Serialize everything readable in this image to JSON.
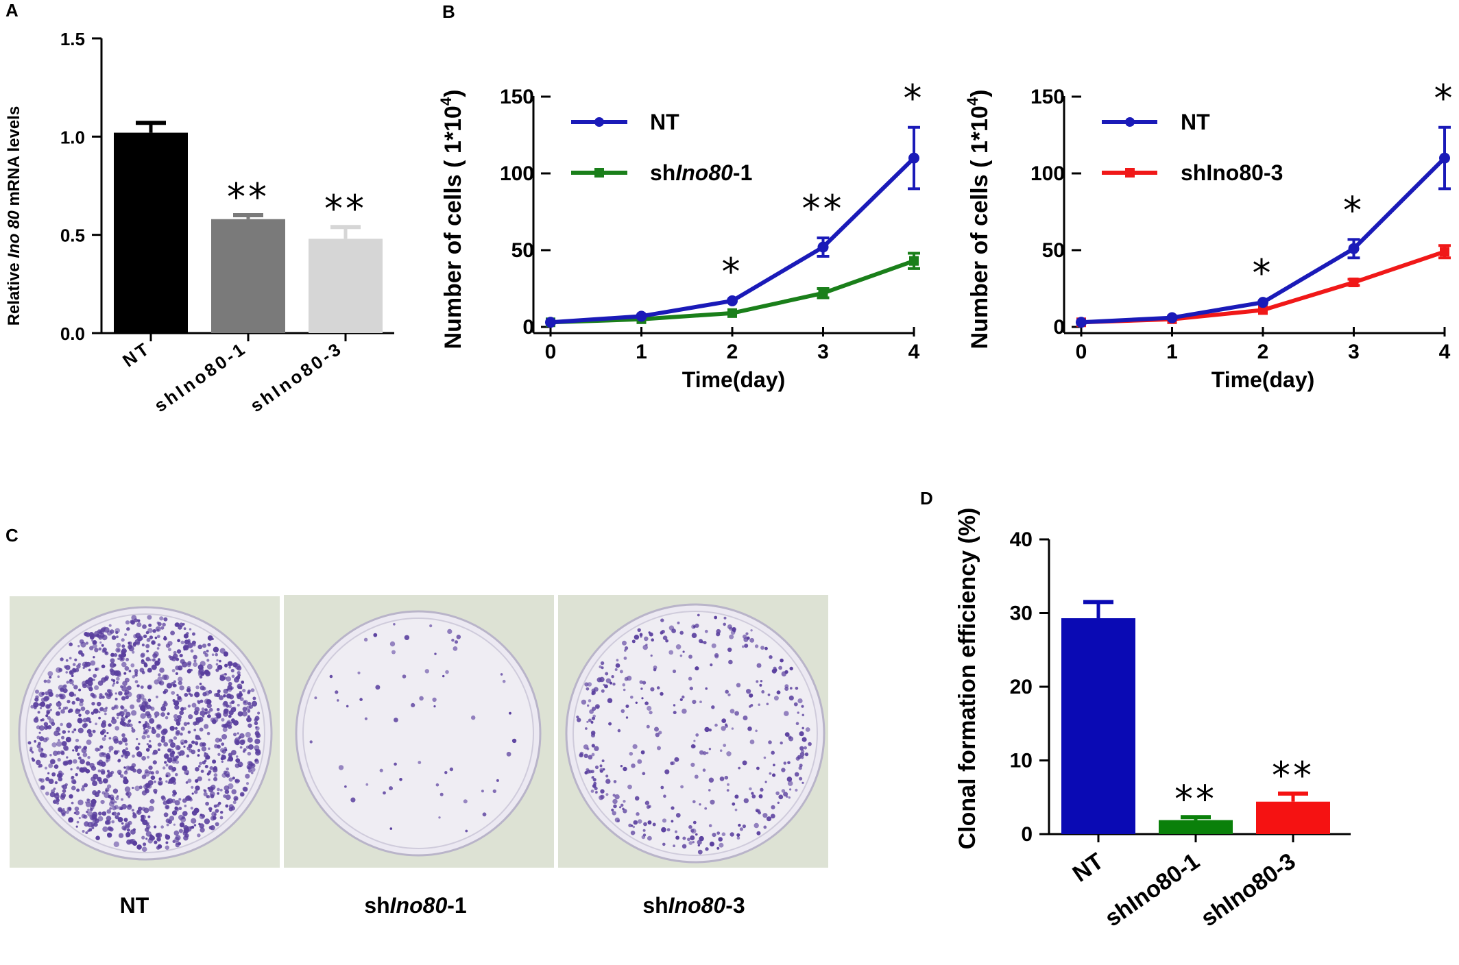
{
  "panel_labels": {
    "a": "A",
    "b": "B",
    "c": "C",
    "d": "D"
  },
  "panel_c": {
    "captions": [
      {
        "pre": "",
        "it": "",
        "post": "NT"
      },
      {
        "pre": "sh",
        "it": "Ino80",
        "post": "-1"
      },
      {
        "pre": "sh",
        "it": "Ino80",
        "post": "-3"
      }
    ],
    "colony_counts": [
      1400,
      60,
      420
    ],
    "dish_colors": {
      "background": "#dfe4d6",
      "dish": "#ece9f2",
      "colony": "#5a3f9e"
    }
  },
  "chart_data": [
    {
      "id": "A",
      "type": "bar",
      "categories": [
        "NT",
        "shIno80-1",
        "shIno80-3"
      ],
      "values": [
        1.02,
        0.58,
        0.48
      ],
      "errors": [
        0.05,
        0.02,
        0.06
      ],
      "colors": [
        "#000000",
        "#7a7a7a",
        "#d6d6d6"
      ],
      "annotations": [
        "",
        "**",
        "**"
      ],
      "ylabel": {
        "pre": "Relative ",
        "it": "Ino 80",
        "post": " mRNA levels"
      },
      "ylim": [
        0,
        1.5
      ],
      "yticks": [
        "0.0",
        "0.5",
        "1.0",
        "1.5"
      ]
    },
    {
      "id": "B1",
      "type": "line",
      "x": [
        0,
        1,
        2,
        3,
        4
      ],
      "xlabel": "Time(day)",
      "ylabel": {
        "pre": "Number of cells ( 1*10",
        "sup": "4",
        "post": ")"
      },
      "ylim": [
        0,
        150
      ],
      "yticks": [
        "0",
        "50",
        "100",
        "150"
      ],
      "series": [
        {
          "name": "NT",
          "values": [
            3,
            7,
            17,
            52,
            110
          ],
          "errors": [
            0,
            0,
            0,
            6,
            20
          ],
          "color": "#1a1ab8",
          "marker": "circle"
        },
        {
          "name_pre": "sh",
          "name_it": "Ino80",
          "name_post": "-1",
          "values": [
            3,
            5,
            9,
            22,
            43
          ],
          "errors": [
            0,
            0,
            0,
            3,
            5
          ],
          "color": "#1a7f1a",
          "marker": "square"
        }
      ],
      "annotations": [
        {
          "x": 2,
          "text": "*"
        },
        {
          "x": 3,
          "text": "**"
        },
        {
          "x": 4,
          "text": "*"
        }
      ]
    },
    {
      "id": "B2",
      "type": "line",
      "x": [
        0,
        1,
        2,
        3,
        4
      ],
      "xlabel": "Time(day)",
      "ylabel": {
        "pre": "Number of cells  ( 1*10",
        "sup": "4",
        "post": ")"
      },
      "ylim": [
        0,
        150
      ],
      "yticks": [
        "0",
        "50",
        "100",
        "150"
      ],
      "series": [
        {
          "name": "NT",
          "values": [
            3,
            6,
            16,
            51,
            110
          ],
          "errors": [
            0,
            0,
            0,
            6,
            20
          ],
          "color": "#1a1ab8",
          "marker": "circle"
        },
        {
          "name": "shIno80-3",
          "values": [
            3,
            5,
            11,
            29,
            49
          ],
          "errors": [
            0,
            0,
            0,
            2,
            4
          ],
          "color": "#f01818",
          "marker": "square"
        }
      ],
      "annotations": [
        {
          "x": 2,
          "text": "*"
        },
        {
          "x": 3,
          "text": "*"
        },
        {
          "x": 4,
          "text": "*"
        }
      ]
    },
    {
      "id": "D",
      "type": "bar",
      "categories": [
        "NT",
        "shIno80-1",
        "shIno80-3"
      ],
      "values": [
        29.3,
        1.9,
        4.4
      ],
      "errors": [
        2.2,
        0.4,
        1.1
      ],
      "colors": [
        "#0a0ab4",
        "#0a800a",
        "#f51212"
      ],
      "annotations": [
        "",
        "**",
        "**"
      ],
      "ylabel": "Clonal formation efficiency (%)",
      "ylim": [
        0,
        40
      ],
      "yticks": [
        "0",
        "10",
        "20",
        "30",
        "40"
      ]
    }
  ]
}
